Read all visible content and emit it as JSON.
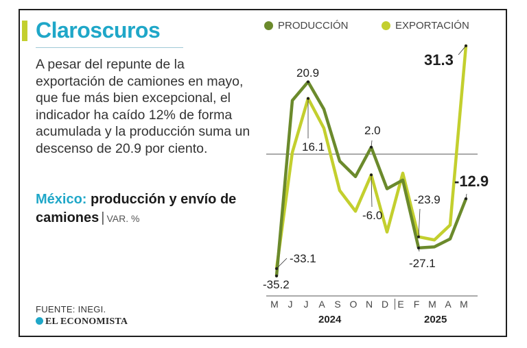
{
  "title": "Claroscuros",
  "description": "A pesar del repunte de la exportación de camiones en mayo, que fue más bien excepcional, el indicador ha caído 12% de forma acumulada y la producción suma un descenso de 20.9 por ciento.",
  "subtitle": {
    "accent": "México:",
    "main": "producción y envío de camiones",
    "separator": "|",
    "unit": "VAR. %"
  },
  "source": "FUENTE: INEGI.",
  "brand": "EL ECONOMISTA",
  "colors": {
    "title": "#1fa7c8",
    "produccion": "#6b8a2c",
    "exportacion": "#c3cf2e",
    "accent_bar": "#c3cf2e"
  },
  "chart_data": {
    "type": "line",
    "title": "",
    "xlabel": "",
    "ylabel": "",
    "categories": [
      "M",
      "J",
      "J",
      "A",
      "S",
      "O",
      "N",
      "D",
      "E",
      "F",
      "M",
      "A",
      "M"
    ],
    "year_groups": [
      {
        "label": "2024",
        "from": 0,
        "to": 7
      },
      {
        "label": "2025",
        "from": 8,
        "to": 12
      }
    ],
    "ylim": [
      -40,
      35
    ],
    "zero_line": true,
    "grid": false,
    "legend_position": "top",
    "series": [
      {
        "name": "PRODUCCIÓN",
        "color": "#6b8a2c",
        "values": [
          -35.2,
          15.5,
          20.9,
          13.0,
          -2.0,
          -6.5,
          2.0,
          -10.0,
          -7.5,
          -27.1,
          -26.8,
          -24.5,
          -12.9
        ]
      },
      {
        "name": "EXPORTACIÓN",
        "color": "#c3cf2e",
        "values": [
          -33.1,
          0.5,
          16.1,
          7.5,
          -10.5,
          -16.5,
          -6.0,
          -22.5,
          -5.5,
          -23.9,
          -24.8,
          -20.5,
          31.3
        ]
      }
    ],
    "annotations": [
      {
        "series": 0,
        "index": 0,
        "text": "-35.2"
      },
      {
        "series": 1,
        "index": 0,
        "text": "-33.1"
      },
      {
        "series": 0,
        "index": 2,
        "text": "20.9"
      },
      {
        "series": 1,
        "index": 2,
        "text": "16.1"
      },
      {
        "series": 0,
        "index": 6,
        "text": "2.0"
      },
      {
        "series": 1,
        "index": 6,
        "text": "-6.0"
      },
      {
        "series": 1,
        "index": 9,
        "text": "-23.9"
      },
      {
        "series": 0,
        "index": 9,
        "text": "-27.1"
      },
      {
        "series": 1,
        "index": 12,
        "text": "31.3"
      },
      {
        "series": 0,
        "index": 12,
        "text": "-12.9"
      }
    ]
  }
}
